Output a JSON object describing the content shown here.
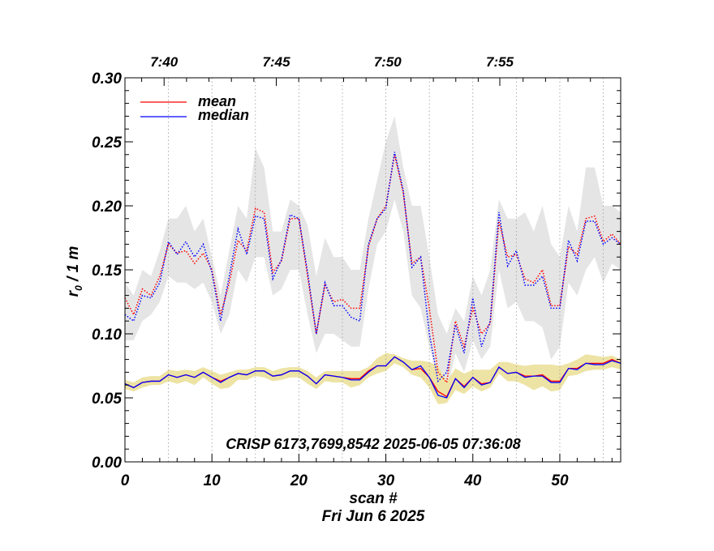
{
  "chart_data": {
    "type": "line",
    "title": "",
    "xlabel": "scan #",
    "xlabel_sub": "Fri Jun  6 2025",
    "ylabel_main": "r",
    "ylabel_sub": "0",
    "ylabel_rest": " / 1 m",
    "annotation": "CRISP 6173,7699,8542 2025-06-05 07:36:08",
    "xlim": [
      0,
      57
    ],
    "ylim": [
      0,
      0.3
    ],
    "x_ticks": [
      0,
      10,
      20,
      30,
      40,
      50
    ],
    "x_tick_labels": [
      "0",
      "10",
      "20",
      "30",
      "40",
      "50"
    ],
    "y_ticks": [
      0,
      0.05,
      0.1,
      0.15,
      0.2,
      0.25,
      0.3
    ],
    "y_tick_labels": [
      "0.00",
      "0.05",
      "0.10",
      "0.15",
      "0.20",
      "0.25",
      "0.30"
    ],
    "top_axis": {
      "positions": [
        4.5,
        17.4,
        30.2,
        43.1
      ],
      "labels": [
        "7:40",
        "7:45",
        "7:50",
        "7:55"
      ]
    },
    "grid_x": [
      5,
      10,
      15,
      20,
      25,
      30,
      35,
      40,
      45,
      50,
      55
    ],
    "legend": [
      {
        "name": "mean",
        "color": "#ff0000"
      },
      {
        "name": "median",
        "color": "#0000ff"
      }
    ],
    "legend_position": "top-left",
    "x": [
      0,
      1,
      2,
      3,
      4,
      5,
      6,
      7,
      8,
      9,
      10,
      11,
      12,
      13,
      14,
      15,
      16,
      17,
      18,
      19,
      20,
      21,
      22,
      23,
      24,
      25,
      26,
      27,
      28,
      29,
      30,
      31,
      32,
      33,
      34,
      35,
      36,
      37,
      38,
      39,
      40,
      41,
      42,
      43,
      44,
      45,
      46,
      47,
      48,
      49,
      50,
      51,
      52,
      53,
      54,
      55,
      56,
      57
    ],
    "series": [
      {
        "name": "mean (upper cluster)",
        "color": "#ff0000",
        "style": "dotted",
        "values": [
          0.128,
          0.115,
          0.135,
          0.13,
          0.145,
          0.17,
          0.163,
          0.165,
          0.155,
          0.163,
          0.15,
          0.115,
          0.14,
          0.173,
          0.165,
          0.198,
          0.195,
          0.148,
          0.157,
          0.19,
          0.19,
          0.145,
          0.1,
          0.138,
          0.125,
          0.127,
          0.12,
          0.12,
          0.168,
          0.19,
          0.2,
          0.24,
          0.21,
          0.155,
          0.16,
          0.12,
          0.07,
          0.062,
          0.11,
          0.09,
          0.12,
          0.1,
          0.108,
          0.188,
          0.16,
          0.162,
          0.143,
          0.14,
          0.15,
          0.122,
          0.122,
          0.168,
          0.162,
          0.19,
          0.192,
          0.172,
          0.178,
          0.17
        ]
      },
      {
        "name": "median (upper cluster)",
        "color": "#0000ff",
        "style": "dotted",
        "values": [
          0.115,
          0.11,
          0.13,
          0.128,
          0.14,
          0.172,
          0.162,
          0.172,
          0.16,
          0.17,
          0.148,
          0.11,
          0.145,
          0.182,
          0.162,
          0.192,
          0.19,
          0.143,
          0.158,
          0.193,
          0.19,
          0.148,
          0.1,
          0.14,
          0.122,
          0.122,
          0.113,
          0.11,
          0.17,
          0.19,
          0.198,
          0.242,
          0.212,
          0.152,
          0.16,
          0.1,
          0.063,
          0.07,
          0.107,
          0.085,
          0.128,
          0.09,
          0.11,
          0.195,
          0.153,
          0.165,
          0.138,
          0.138,
          0.145,
          0.12,
          0.12,
          0.173,
          0.157,
          0.188,
          0.188,
          0.17,
          0.175,
          0.17
        ]
      },
      {
        "name": "mean (lower cluster)",
        "color": "#ff0000",
        "style": "solid",
        "values": [
          0.061,
          0.058,
          0.062,
          0.063,
          0.063,
          0.068,
          0.066,
          0.068,
          0.066,
          0.07,
          0.066,
          0.063,
          0.066,
          0.069,
          0.068,
          0.071,
          0.071,
          0.067,
          0.068,
          0.071,
          0.071,
          0.067,
          0.061,
          0.068,
          0.067,
          0.066,
          0.065,
          0.065,
          0.071,
          0.075,
          0.075,
          0.082,
          0.078,
          0.072,
          0.073,
          0.066,
          0.055,
          0.051,
          0.065,
          0.059,
          0.066,
          0.061,
          0.062,
          0.074,
          0.069,
          0.07,
          0.067,
          0.067,
          0.068,
          0.063,
          0.063,
          0.073,
          0.073,
          0.077,
          0.077,
          0.077,
          0.08,
          0.077
        ]
      },
      {
        "name": "median (lower cluster)",
        "color": "#0000ff",
        "style": "solid",
        "values": [
          0.061,
          0.058,
          0.062,
          0.063,
          0.063,
          0.068,
          0.066,
          0.068,
          0.066,
          0.07,
          0.066,
          0.062,
          0.066,
          0.069,
          0.068,
          0.071,
          0.071,
          0.067,
          0.068,
          0.071,
          0.071,
          0.067,
          0.061,
          0.068,
          0.067,
          0.066,
          0.064,
          0.064,
          0.07,
          0.075,
          0.075,
          0.082,
          0.078,
          0.072,
          0.075,
          0.066,
          0.052,
          0.05,
          0.065,
          0.058,
          0.066,
          0.06,
          0.062,
          0.074,
          0.069,
          0.07,
          0.066,
          0.067,
          0.067,
          0.062,
          0.062,
          0.073,
          0.072,
          0.077,
          0.076,
          0.076,
          0.079,
          0.077
        ]
      }
    ],
    "bands": [
      {
        "name": "upper spread",
        "color": "#e5e5e5",
        "upper": [
          0.14,
          0.13,
          0.15,
          0.145,
          0.165,
          0.19,
          0.19,
          0.2,
          0.18,
          0.19,
          0.16,
          0.13,
          0.165,
          0.2,
          0.19,
          0.245,
          0.23,
          0.18,
          0.18,
          0.205,
          0.2,
          0.185,
          0.145,
          0.175,
          0.16,
          0.16,
          0.15,
          0.15,
          0.19,
          0.22,
          0.25,
          0.27,
          0.23,
          0.2,
          0.2,
          0.16,
          0.115,
          0.1,
          0.12,
          0.11,
          0.145,
          0.13,
          0.15,
          0.205,
          0.19,
          0.19,
          0.195,
          0.18,
          0.2,
          0.17,
          0.16,
          0.2,
          0.18,
          0.23,
          0.23,
          0.2,
          0.2,
          0.195
        ],
        "lower": [
          0.095,
          0.095,
          0.11,
          0.115,
          0.125,
          0.145,
          0.14,
          0.14,
          0.135,
          0.14,
          0.125,
          0.1,
          0.115,
          0.15,
          0.14,
          0.16,
          0.16,
          0.13,
          0.135,
          0.15,
          0.15,
          0.115,
          0.085,
          0.1,
          0.1,
          0.095,
          0.09,
          0.09,
          0.135,
          0.17,
          0.18,
          0.205,
          0.18,
          0.13,
          0.12,
          0.09,
          0.065,
          0.055,
          0.085,
          0.07,
          0.095,
          0.08,
          0.09,
          0.15,
          0.12,
          0.125,
          0.11,
          0.11,
          0.105,
          0.08,
          0.09,
          0.14,
          0.13,
          0.15,
          0.16,
          0.14,
          0.155,
          0.15
        ]
      },
      {
        "name": "lower spread",
        "color": "#ede3a4",
        "upper": [
          0.064,
          0.062,
          0.066,
          0.067,
          0.067,
          0.072,
          0.071,
          0.072,
          0.071,
          0.074,
          0.071,
          0.068,
          0.07,
          0.072,
          0.072,
          0.074,
          0.074,
          0.071,
          0.073,
          0.074,
          0.074,
          0.071,
          0.066,
          0.071,
          0.071,
          0.071,
          0.071,
          0.071,
          0.074,
          0.081,
          0.085,
          0.084,
          0.081,
          0.079,
          0.079,
          0.078,
          0.075,
          0.063,
          0.073,
          0.069,
          0.072,
          0.072,
          0.072,
          0.078,
          0.078,
          0.076,
          0.075,
          0.076,
          0.076,
          0.076,
          0.075,
          0.077,
          0.08,
          0.084,
          0.083,
          0.082,
          0.083,
          0.08
        ],
        "lower": [
          0.057,
          0.055,
          0.058,
          0.06,
          0.06,
          0.063,
          0.061,
          0.063,
          0.06,
          0.066,
          0.061,
          0.057,
          0.058,
          0.064,
          0.064,
          0.067,
          0.066,
          0.063,
          0.064,
          0.066,
          0.066,
          0.061,
          0.057,
          0.063,
          0.062,
          0.062,
          0.058,
          0.06,
          0.066,
          0.069,
          0.071,
          0.077,
          0.074,
          0.068,
          0.066,
          0.058,
          0.045,
          0.046,
          0.056,
          0.053,
          0.059,
          0.055,
          0.058,
          0.069,
          0.063,
          0.063,
          0.06,
          0.056,
          0.059,
          0.055,
          0.056,
          0.067,
          0.068,
          0.071,
          0.072,
          0.072,
          0.074,
          0.072
        ]
      }
    ]
  }
}
